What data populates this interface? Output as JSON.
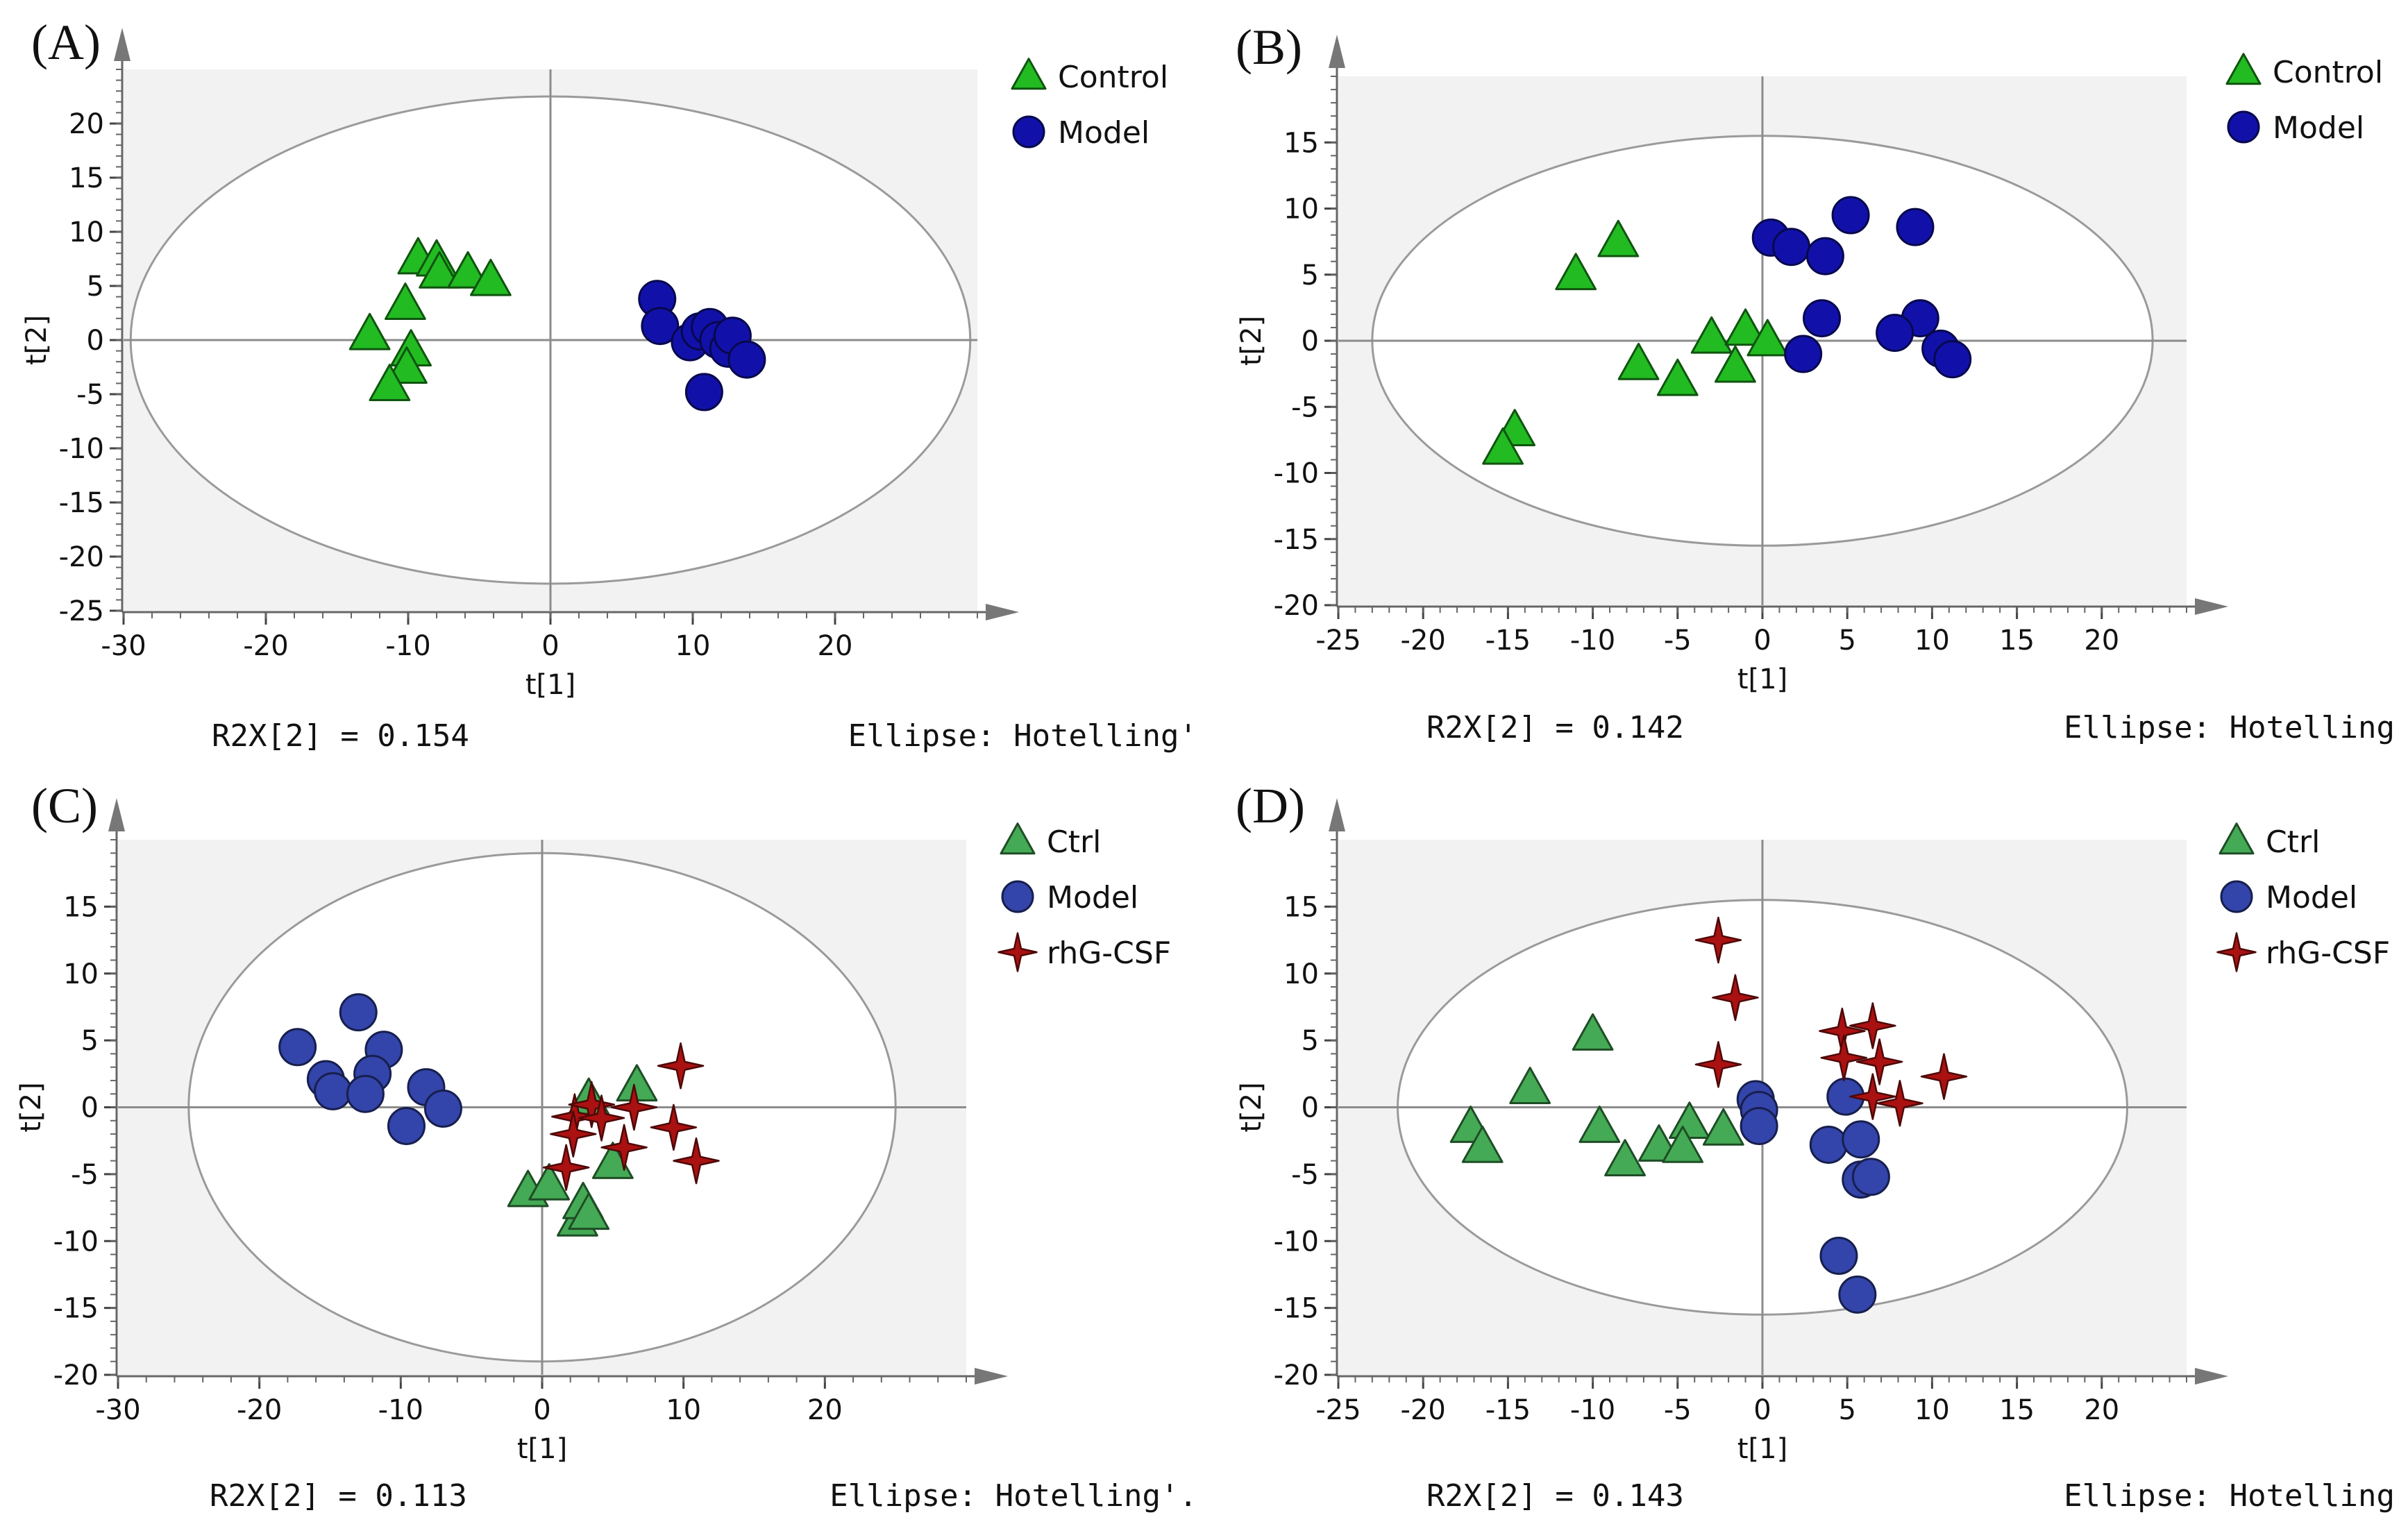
{
  "chart_data": [
    {
      "type": "scatter",
      "panel_label": "(A)",
      "xlabel": "t[1]",
      "ylabel": "t[2]",
      "xlim": [
        -30,
        30
      ],
      "ylim": [
        -25,
        25
      ],
      "xticks": [
        -30,
        -20,
        -10,
        0,
        10,
        20
      ],
      "yticks": [
        -25,
        -20,
        -15,
        -10,
        -5,
        0,
        5,
        10,
        15,
        20
      ],
      "ellipse": {
        "rx": 29.5,
        "ry": 22.5
      },
      "footer_left": "R2X[2] = 0.154",
      "footer_right": "Ellipse: Hotelling'",
      "series": [
        {
          "name": "Control",
          "marker": "triangle",
          "color": "#22bb22",
          "points": [
            [
              -9.3,
              7.5
            ],
            [
              -8,
              7.3
            ],
            [
              -7.8,
              6.2
            ],
            [
              -5.8,
              6.2
            ],
            [
              -4.2,
              5.5
            ],
            [
              -12.7,
              0.5
            ],
            [
              -10.2,
              3.3
            ],
            [
              -9.8,
              -1
            ],
            [
              -10.1,
              -2.6
            ],
            [
              -11.3,
              -4.2
            ]
          ]
        },
        {
          "name": "Model",
          "marker": "circle",
          "color": "#1111aa",
          "points": [
            [
              7.5,
              3.8
            ],
            [
              7.7,
              1.3
            ],
            [
              9.8,
              -0.2
            ],
            [
              10.5,
              0.8
            ],
            [
              11.2,
              1.2
            ],
            [
              11.8,
              0
            ],
            [
              12.5,
              -0.8
            ],
            [
              12.8,
              0.4
            ],
            [
              13.8,
              -1.8
            ],
            [
              10.8,
              -4.8
            ]
          ]
        }
      ]
    },
    {
      "type": "scatter",
      "panel_label": "(B)",
      "xlabel": "t[1]",
      "ylabel": "t[2]",
      "xlim": [
        -25,
        25
      ],
      "ylim": [
        -20,
        20
      ],
      "xticks": [
        -25,
        -20,
        -15,
        -10,
        -5,
        0,
        5,
        10,
        15,
        20
      ],
      "yticks": [
        -20,
        -15,
        -10,
        -5,
        0,
        5,
        10,
        15
      ],
      "ellipse": {
        "rx": 23,
        "ry": 15.5
      },
      "footer_left": "R2X[2] = 0.142",
      "footer_right": "Ellipse: Hotelling",
      "series": [
        {
          "name": "Control",
          "marker": "triangle",
          "color": "#22bb22",
          "points": [
            [
              -8.5,
              7.5
            ],
            [
              -11,
              5
            ],
            [
              -3,
              0.2
            ],
            [
              -1,
              0.8
            ],
            [
              0.3,
              0
            ],
            [
              -7.3,
              -1.8
            ],
            [
              -5,
              -3
            ],
            [
              -1.6,
              -2
            ],
            [
              -14.6,
              -6.8
            ],
            [
              -15.3,
              -8.2
            ]
          ]
        },
        {
          "name": "Model",
          "marker": "circle",
          "color": "#1111aa",
          "points": [
            [
              5.2,
              9.5
            ],
            [
              0.5,
              7.8
            ],
            [
              1.7,
              7.1
            ],
            [
              3.7,
              6.4
            ],
            [
              9,
              8.6
            ],
            [
              3.5,
              1.7
            ],
            [
              9.3,
              1.7
            ],
            [
              7.8,
              0.6
            ],
            [
              10.5,
              -0.6
            ],
            [
              11.2,
              -1.4
            ],
            [
              2.4,
              -1
            ]
          ]
        }
      ]
    },
    {
      "type": "scatter",
      "panel_label": "(C)",
      "xlabel": "t[1]",
      "ylabel": "t[2]",
      "xlim": [
        -30,
        30
      ],
      "ylim": [
        -20,
        20
      ],
      "xticks": [
        -30,
        -20,
        -10,
        0,
        10,
        20
      ],
      "yticks": [
        -20,
        -15,
        -10,
        -5,
        0,
        5,
        10,
        15
      ],
      "ellipse": {
        "rx": 25,
        "ry": 19
      },
      "footer_left": "R2X[2] = 0.113",
      "footer_right": "Ellipse: Hotelling'.",
      "series": [
        {
          "name": "Ctrl",
          "marker": "triangle",
          "color": "#44aa55",
          "points": [
            [
              3.3,
              0.6
            ],
            [
              6.7,
              1.6
            ],
            [
              5,
              -4.2
            ],
            [
              -1,
              -6.3
            ],
            [
              0.5,
              -5.8
            ],
            [
              2.5,
              -8.5
            ],
            [
              2.9,
              -7.2
            ],
            [
              3.3,
              -8
            ]
          ]
        },
        {
          "name": "Model",
          "marker": "circle",
          "color": "#3344aa",
          "points": [
            [
              -17.3,
              4.5
            ],
            [
              -13,
              7.1
            ],
            [
              -11.2,
              4.3
            ],
            [
              -15.3,
              2.1
            ],
            [
              -12,
              2.5
            ],
            [
              -14.8,
              1.2
            ],
            [
              -12.5,
              1
            ],
            [
              -8.2,
              1.5
            ],
            [
              -7,
              -0.1
            ],
            [
              -9.6,
              -1.4
            ]
          ]
        },
        {
          "name": "rhG-CSF",
          "marker": "star",
          "color": "#aa1111",
          "points": [
            [
              9.8,
              3.1
            ],
            [
              2.3,
              -0.7
            ],
            [
              3.5,
              0.2
            ],
            [
              4.2,
              -0.8
            ],
            [
              6.5,
              0
            ],
            [
              2.2,
              -2
            ],
            [
              9.3,
              -1.5
            ],
            [
              5.8,
              -3
            ],
            [
              1.7,
              -4.5
            ],
            [
              10.9,
              -4
            ]
          ]
        }
      ]
    },
    {
      "type": "scatter",
      "panel_label": "(D)",
      "xlabel": "t[1]",
      "ylabel": "t[2]",
      "xlim": [
        -25,
        25
      ],
      "ylim": [
        -20,
        20
      ],
      "xticks": [
        -25,
        -20,
        -15,
        -10,
        -5,
        0,
        5,
        10,
        15,
        20
      ],
      "yticks": [
        -20,
        -15,
        -10,
        -5,
        0,
        5,
        10,
        15
      ],
      "ellipse": {
        "rx": 21.5,
        "ry": 15.5
      },
      "footer_left": "R2X[2] = 0.143",
      "footer_right": "Ellipse: Hotelling",
      "series": [
        {
          "name": "Ctrl",
          "marker": "triangle",
          "color": "#44aa55",
          "points": [
            [
              -10,
              5.4
            ],
            [
              -13.7,
              1.4
            ],
            [
              -17.2,
              -1.5
            ],
            [
              -16.5,
              -3
            ],
            [
              -9.6,
              -1.5
            ],
            [
              -4.3,
              -1.2
            ],
            [
              -2.3,
              -1.7
            ],
            [
              -6.1,
              -2.9
            ],
            [
              -4.7,
              -3
            ],
            [
              -8.1,
              -4
            ]
          ]
        },
        {
          "name": "Model",
          "marker": "circle",
          "color": "#3344aa",
          "points": [
            [
              -0.4,
              0.6
            ],
            [
              -0.2,
              -0.2
            ],
            [
              -0.2,
              -1.4
            ],
            [
              4.9,
              0.8
            ],
            [
              3.9,
              -2.8
            ],
            [
              5.8,
              -2.4
            ],
            [
              5.8,
              -5.4
            ],
            [
              6.4,
              -5.2
            ],
            [
              4.5,
              -11.1
            ],
            [
              5.6,
              -14
            ]
          ]
        },
        {
          "name": "rhG-CSF",
          "marker": "star",
          "color": "#aa1111",
          "points": [
            [
              -2.6,
              12.5
            ],
            [
              -1.6,
              8.2
            ],
            [
              -2.6,
              3.2
            ],
            [
              4.7,
              5.7
            ],
            [
              6.5,
              6.1
            ],
            [
              4.8,
              3.7
            ],
            [
              6.9,
              3.4
            ],
            [
              10.7,
              2.3
            ],
            [
              6.5,
              0.8
            ],
            [
              8.1,
              0.3
            ]
          ]
        }
      ]
    }
  ]
}
